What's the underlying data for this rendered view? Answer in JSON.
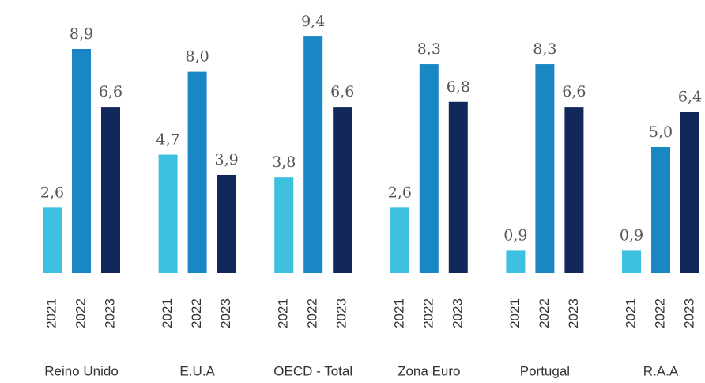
{
  "chart_data": {
    "type": "bar",
    "categories": [
      "Reino Unido",
      "E.U.A",
      "OECD - Total",
      "Zona Euro",
      "Portugal",
      "R.A.A"
    ],
    "series": [
      {
        "name": "2021",
        "color": "#3ec1df",
        "values": [
          2.6,
          4.7,
          3.8,
          2.6,
          0.9,
          0.9
        ],
        "value_labels": [
          "2,6",
          "4,7",
          "3,8",
          "2,6",
          "0,9",
          "0,9"
        ]
      },
      {
        "name": "2022",
        "color": "#1a86c4",
        "values": [
          8.9,
          8.0,
          9.4,
          8.3,
          8.3,
          5.0
        ],
        "value_labels": [
          "8,9",
          "8,0",
          "9,4",
          "8,3",
          "8,3",
          "5,0"
        ]
      },
      {
        "name": "2023",
        "color": "#13285a",
        "values": [
          6.6,
          3.9,
          6.6,
          6.8,
          6.6,
          6.4
        ],
        "value_labels": [
          "6,6",
          "3,9",
          "6,6",
          "6,8",
          "6,6",
          "6,4"
        ]
      }
    ],
    "ylim": [
      0,
      10
    ]
  }
}
